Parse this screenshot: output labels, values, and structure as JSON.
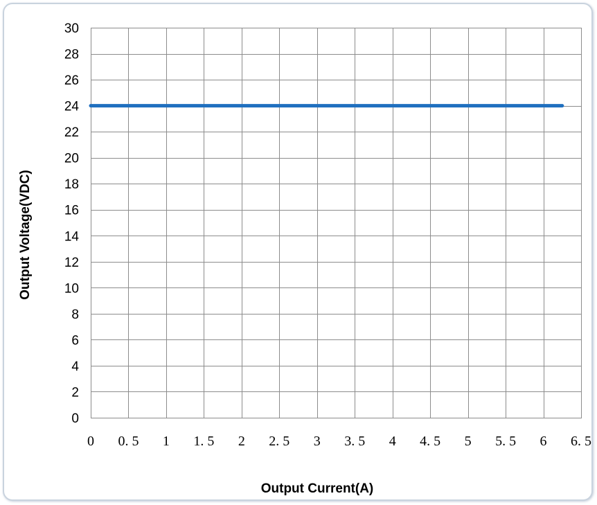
{
  "chart_data": {
    "type": "line",
    "title": "",
    "xlabel": "Output Current(A)",
    "ylabel": "Output Voltage(VDC)",
    "xlim": [
      0,
      6.5
    ],
    "ylim": [
      0,
      30
    ],
    "x_ticks": [
      0,
      0.5,
      1,
      1.5,
      2,
      2.5,
      3,
      3.5,
      4,
      4.5,
      5,
      5.5,
      6,
      6.5
    ],
    "x_tick_labels": [
      "0",
      "0. 5",
      "1",
      "1. 5",
      "2",
      "2. 5",
      "3",
      "3. 5",
      "4",
      "4. 5",
      "5",
      "5. 5",
      "6",
      "6. 5"
    ],
    "y_ticks": [
      0,
      2,
      4,
      6,
      8,
      10,
      12,
      14,
      16,
      18,
      20,
      22,
      24,
      26,
      28,
      30
    ],
    "y_tick_labels": [
      "0",
      "2",
      "4",
      "6",
      "8",
      "10",
      "12",
      "14",
      "16",
      "18",
      "20",
      "22",
      "24",
      "26",
      "28",
      "30"
    ],
    "grid": true,
    "legend": "none",
    "series": [
      {
        "color": "#1f6fbf",
        "x": [
          0,
          6.25
        ],
        "y": [
          24,
          24
        ]
      }
    ]
  }
}
